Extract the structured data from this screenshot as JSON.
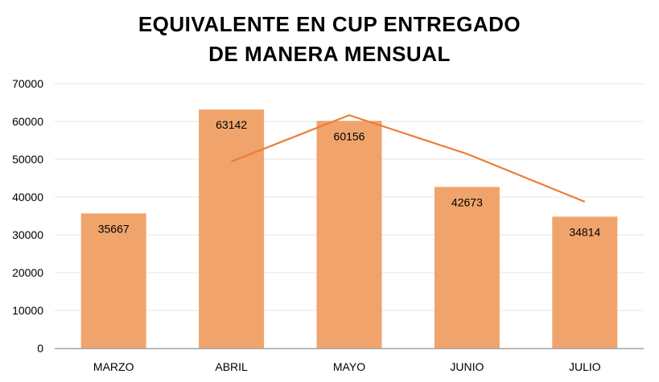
{
  "chart_data": {
    "type": "bar",
    "title_lines": [
      "EQUIVALENTE EN CUP ENTREGADO",
      "DE MANERA MENSUAL"
    ],
    "categories": [
      "MARZO",
      "ABRIL",
      "MAYO",
      "JUNIO",
      "JULIO"
    ],
    "series": [
      {
        "type": "bar",
        "values": [
          35667,
          63142,
          60156,
          42673,
          34814
        ],
        "color": "#F0A46C",
        "data_labels": true
      }
    ],
    "trendline": {
      "type": "moving-average",
      "color": "#ED7D31",
      "values": [
        null,
        49405,
        61649,
        51415,
        38744
      ]
    },
    "ylim": [
      0,
      70000
    ],
    "yticks": [
      0,
      10000,
      20000,
      30000,
      40000,
      50000,
      60000,
      70000
    ],
    "grid": true,
    "legend": "none"
  }
}
